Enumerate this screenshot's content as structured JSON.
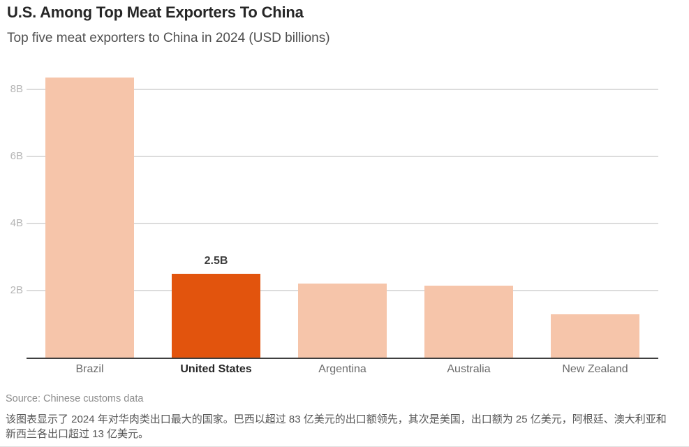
{
  "chart_data": {
    "type": "bar",
    "title": "U.S. Among Top Meat Exporters To China",
    "subtitle": "Top five meat exporters to China in 2024 (USD billions)",
    "xlabel": "",
    "ylabel": "",
    "unit": "USD billions",
    "categories": [
      "Brazil",
      "United States",
      "Argentina",
      "Australia",
      "New Zealand"
    ],
    "values": [
      8.35,
      2.5,
      2.2,
      2.15,
      1.3
    ],
    "data_labels": [
      "",
      "2.5B",
      "",
      "",
      ""
    ],
    "emphasized_index": 1,
    "yticks": [
      {
        "value": 2,
        "label": "2B"
      },
      {
        "value": 4,
        "label": "4B"
      },
      {
        "value": 6,
        "label": "6B"
      },
      {
        "value": 8,
        "label": "8B"
      }
    ],
    "ylim": [
      0,
      8.58
    ],
    "grid": "horizontal",
    "legend": "none",
    "colors": {
      "bar_default": "#F6C5AA",
      "bar_emphasis": "#E2540D",
      "gridline": "#DCDCDC",
      "axis_line": "#3F3F3F",
      "title_text": "#262626",
      "subtitle_text": "#4F4F4F",
      "tick_text": "#B5B5B5"
    }
  },
  "footer": {
    "source": "Source: Chinese customs data",
    "summary_zh": "该图表显示了 2024 年对华肉类出口最大的国家。巴西以超过 83 亿美元的出口额领先，其次是美国，出口额为 25 亿美元，阿根廷、澳大利亚和新西兰各出口超过 13 亿美元。"
  }
}
